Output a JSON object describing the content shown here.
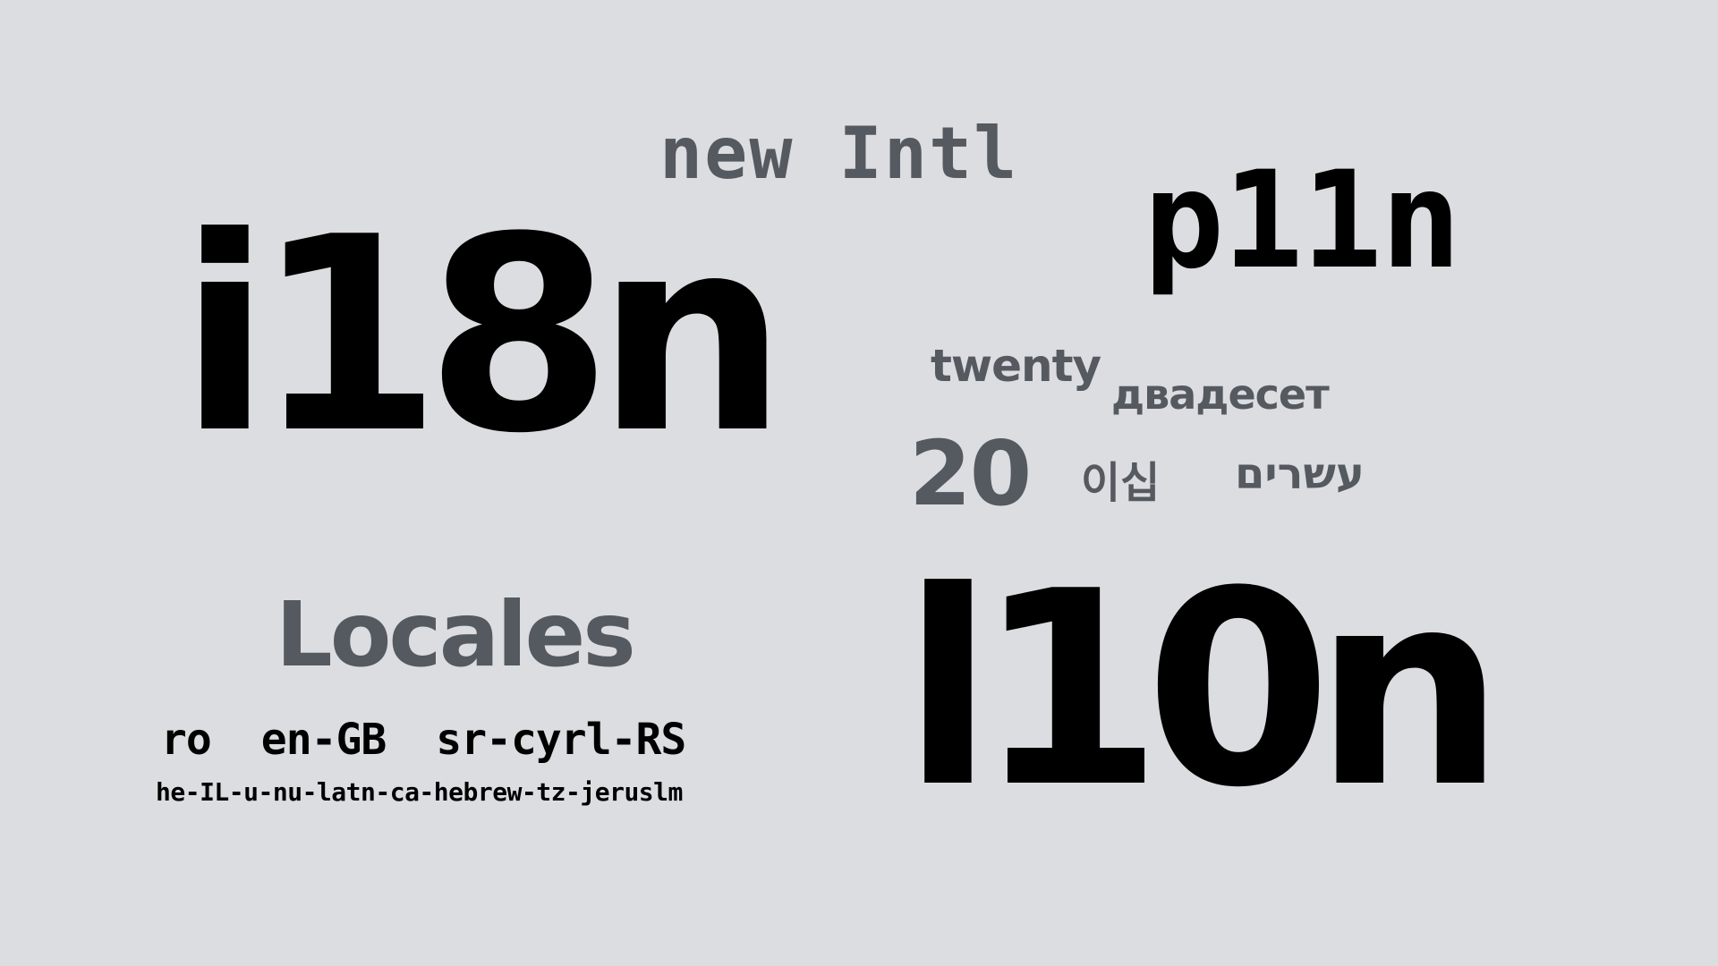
{
  "colors": {
    "background": "#dcdde0",
    "primary": "#000000",
    "secondary": "#555960"
  },
  "words": {
    "new_intl": "new Intl",
    "p11n": "p11n",
    "i18n": "i18n",
    "twenty_en": "twenty",
    "twenty_bg": "двадесет",
    "twenty_num": "20",
    "twenty_ko": "이십",
    "twenty_he": "עשרים",
    "locales": "Locales",
    "l10n": "l10n"
  },
  "locale_codes": [
    "ro",
    "en-GB",
    "sr-cyrl-RS"
  ],
  "locale_long": "he-IL-u-nu-latn-ca-hebrew-tz-jeruslm"
}
